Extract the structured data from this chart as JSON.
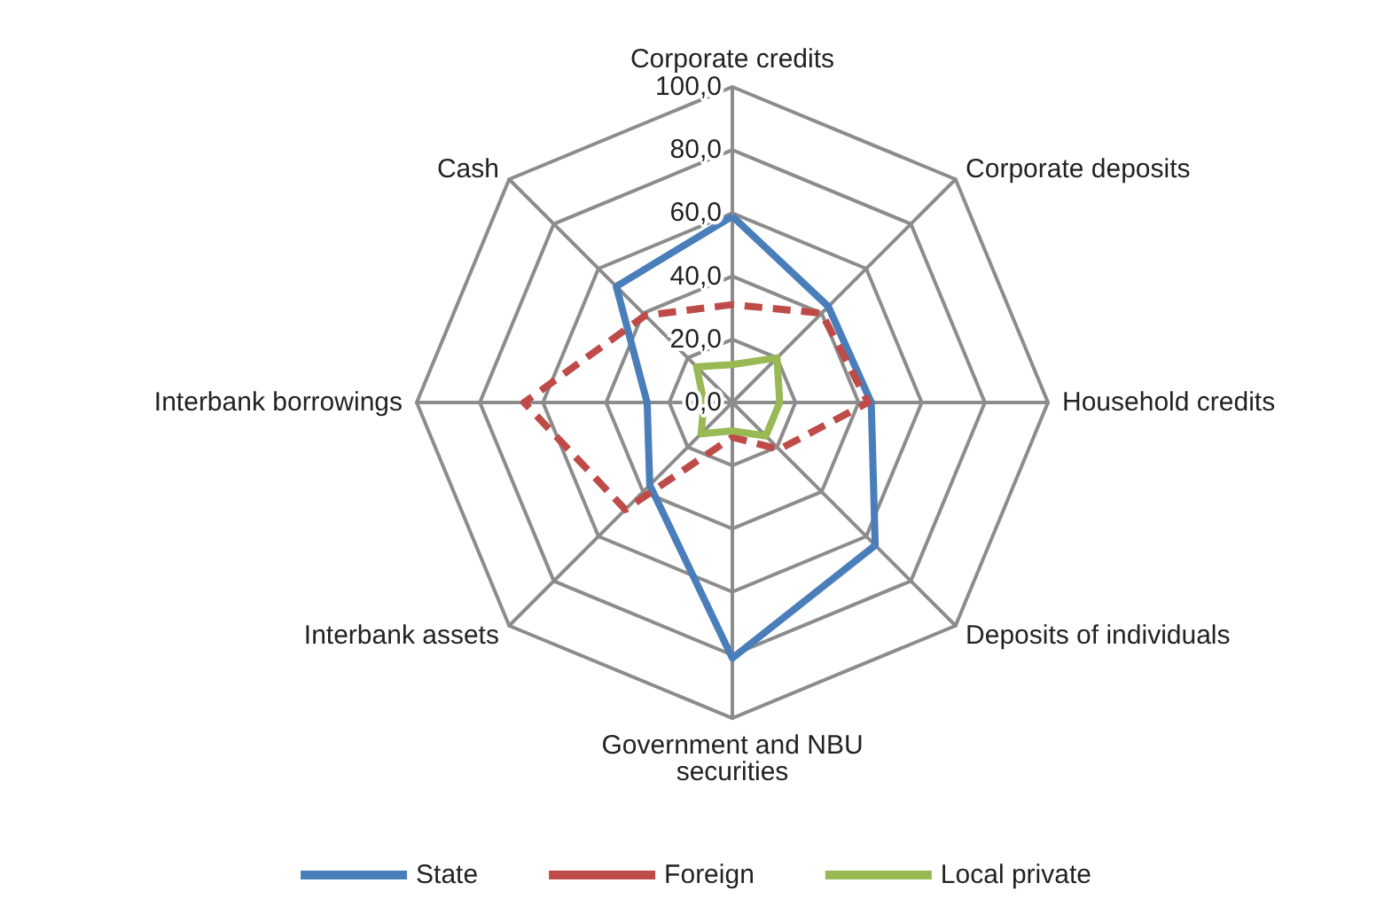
{
  "chart_data": {
    "type": "radar",
    "categories": [
      "Corporate credits",
      "Corporate deposits",
      "Household credits",
      "Deposits of individuals",
      "Government and NBU securities",
      "Interbank assets",
      "Interbank borrowings",
      "Cash"
    ],
    "series": [
      {
        "name": "State",
        "color": "#4a7ebb",
        "line_style": "solid",
        "values": [
          59,
          43,
          44,
          64,
          81,
          37,
          27,
          52
        ]
      },
      {
        "name": "Foreign",
        "color": "#be4b48",
        "line_style": "dashed",
        "values": [
          31,
          40,
          43,
          21,
          11,
          48,
          66,
          39
        ]
      },
      {
        "name": "Local private",
        "color": "#98b954",
        "line_style": "solid",
        "values": [
          12,
          20,
          15,
          15,
          9,
          14,
          9,
          16
        ]
      }
    ],
    "ylim": [
      0,
      100
    ],
    "yticks": [
      {
        "value": 0,
        "label": "0,0"
      },
      {
        "value": 20,
        "label": "20,0"
      },
      {
        "value": 40,
        "label": "40,0"
      },
      {
        "value": 60,
        "label": "60,0"
      },
      {
        "value": 80,
        "label": "80,0"
      },
      {
        "value": 100,
        "label": "100,0"
      }
    ],
    "grid": true,
    "legend": "bottom",
    "marker": "none"
  }
}
